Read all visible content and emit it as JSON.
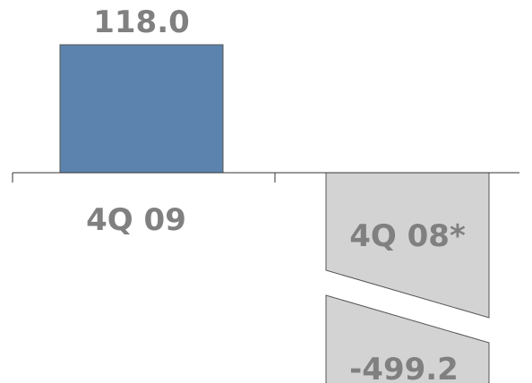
{
  "chart_data": {
    "type": "bar",
    "categories": [
      "4Q 09",
      "4Q 08*"
    ],
    "values": [
      118.0,
      -499.2
    ],
    "value_labels": [
      "118.0",
      "-499.2"
    ],
    "axis_break": true,
    "colors": {
      "positive": "#5b83ad",
      "negative": "#d3d3d3",
      "outline": "#555555",
      "axis": "#333333",
      "label_text": "#808080"
    }
  }
}
